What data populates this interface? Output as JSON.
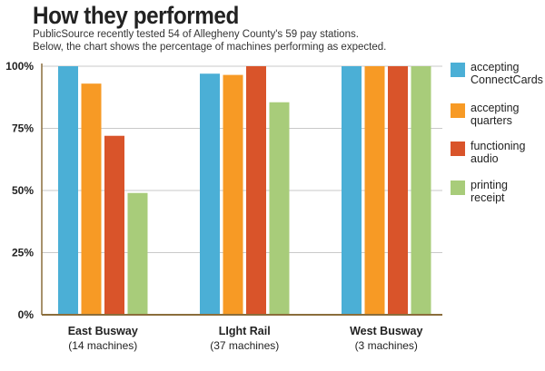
{
  "header": {
    "title": "How they performed",
    "subtitle_line1": "PublicSource recently tested 54 of Allegheny County's 59 pay stations.",
    "subtitle_line2": "Below, the chart shows the percentage of machines performing as expected."
  },
  "chart_data": {
    "type": "bar",
    "title": "How they performed",
    "ylabel": "",
    "xlabel": "",
    "ylim": [
      0,
      100
    ],
    "y_ticks": [
      "0%",
      "25%",
      "50%",
      "75%",
      "100%"
    ],
    "y_tick_values": [
      0,
      25,
      50,
      75,
      100
    ],
    "grid": true,
    "legend_position": "right",
    "categories": [
      "East Busway",
      "LIght Rail",
      "West Busway"
    ],
    "category_sublabels": [
      "(14 machines)",
      "(37 machines)",
      "(3 machines)"
    ],
    "series": [
      {
        "name": "accepting ConnectCards",
        "legend_lines": [
          "accepting",
          "ConnectCards"
        ],
        "color": "#4bafd6",
        "values": [
          100,
          97,
          100
        ]
      },
      {
        "name": "accepting quarters",
        "legend_lines": [
          "accepting",
          "quarters"
        ],
        "color": "#f79a25",
        "values": [
          93,
          96.5,
          100
        ]
      },
      {
        "name": "functioning audio",
        "legend_lines": [
          "functioning",
          "audio"
        ],
        "color": "#d9542a",
        "values": [
          72,
          100,
          100
        ]
      },
      {
        "name": "printing receipt",
        "legend_lines": [
          "printing",
          "receipt"
        ],
        "color": "#a8cc7a",
        "values": [
          49,
          85.5,
          100
        ]
      }
    ]
  }
}
